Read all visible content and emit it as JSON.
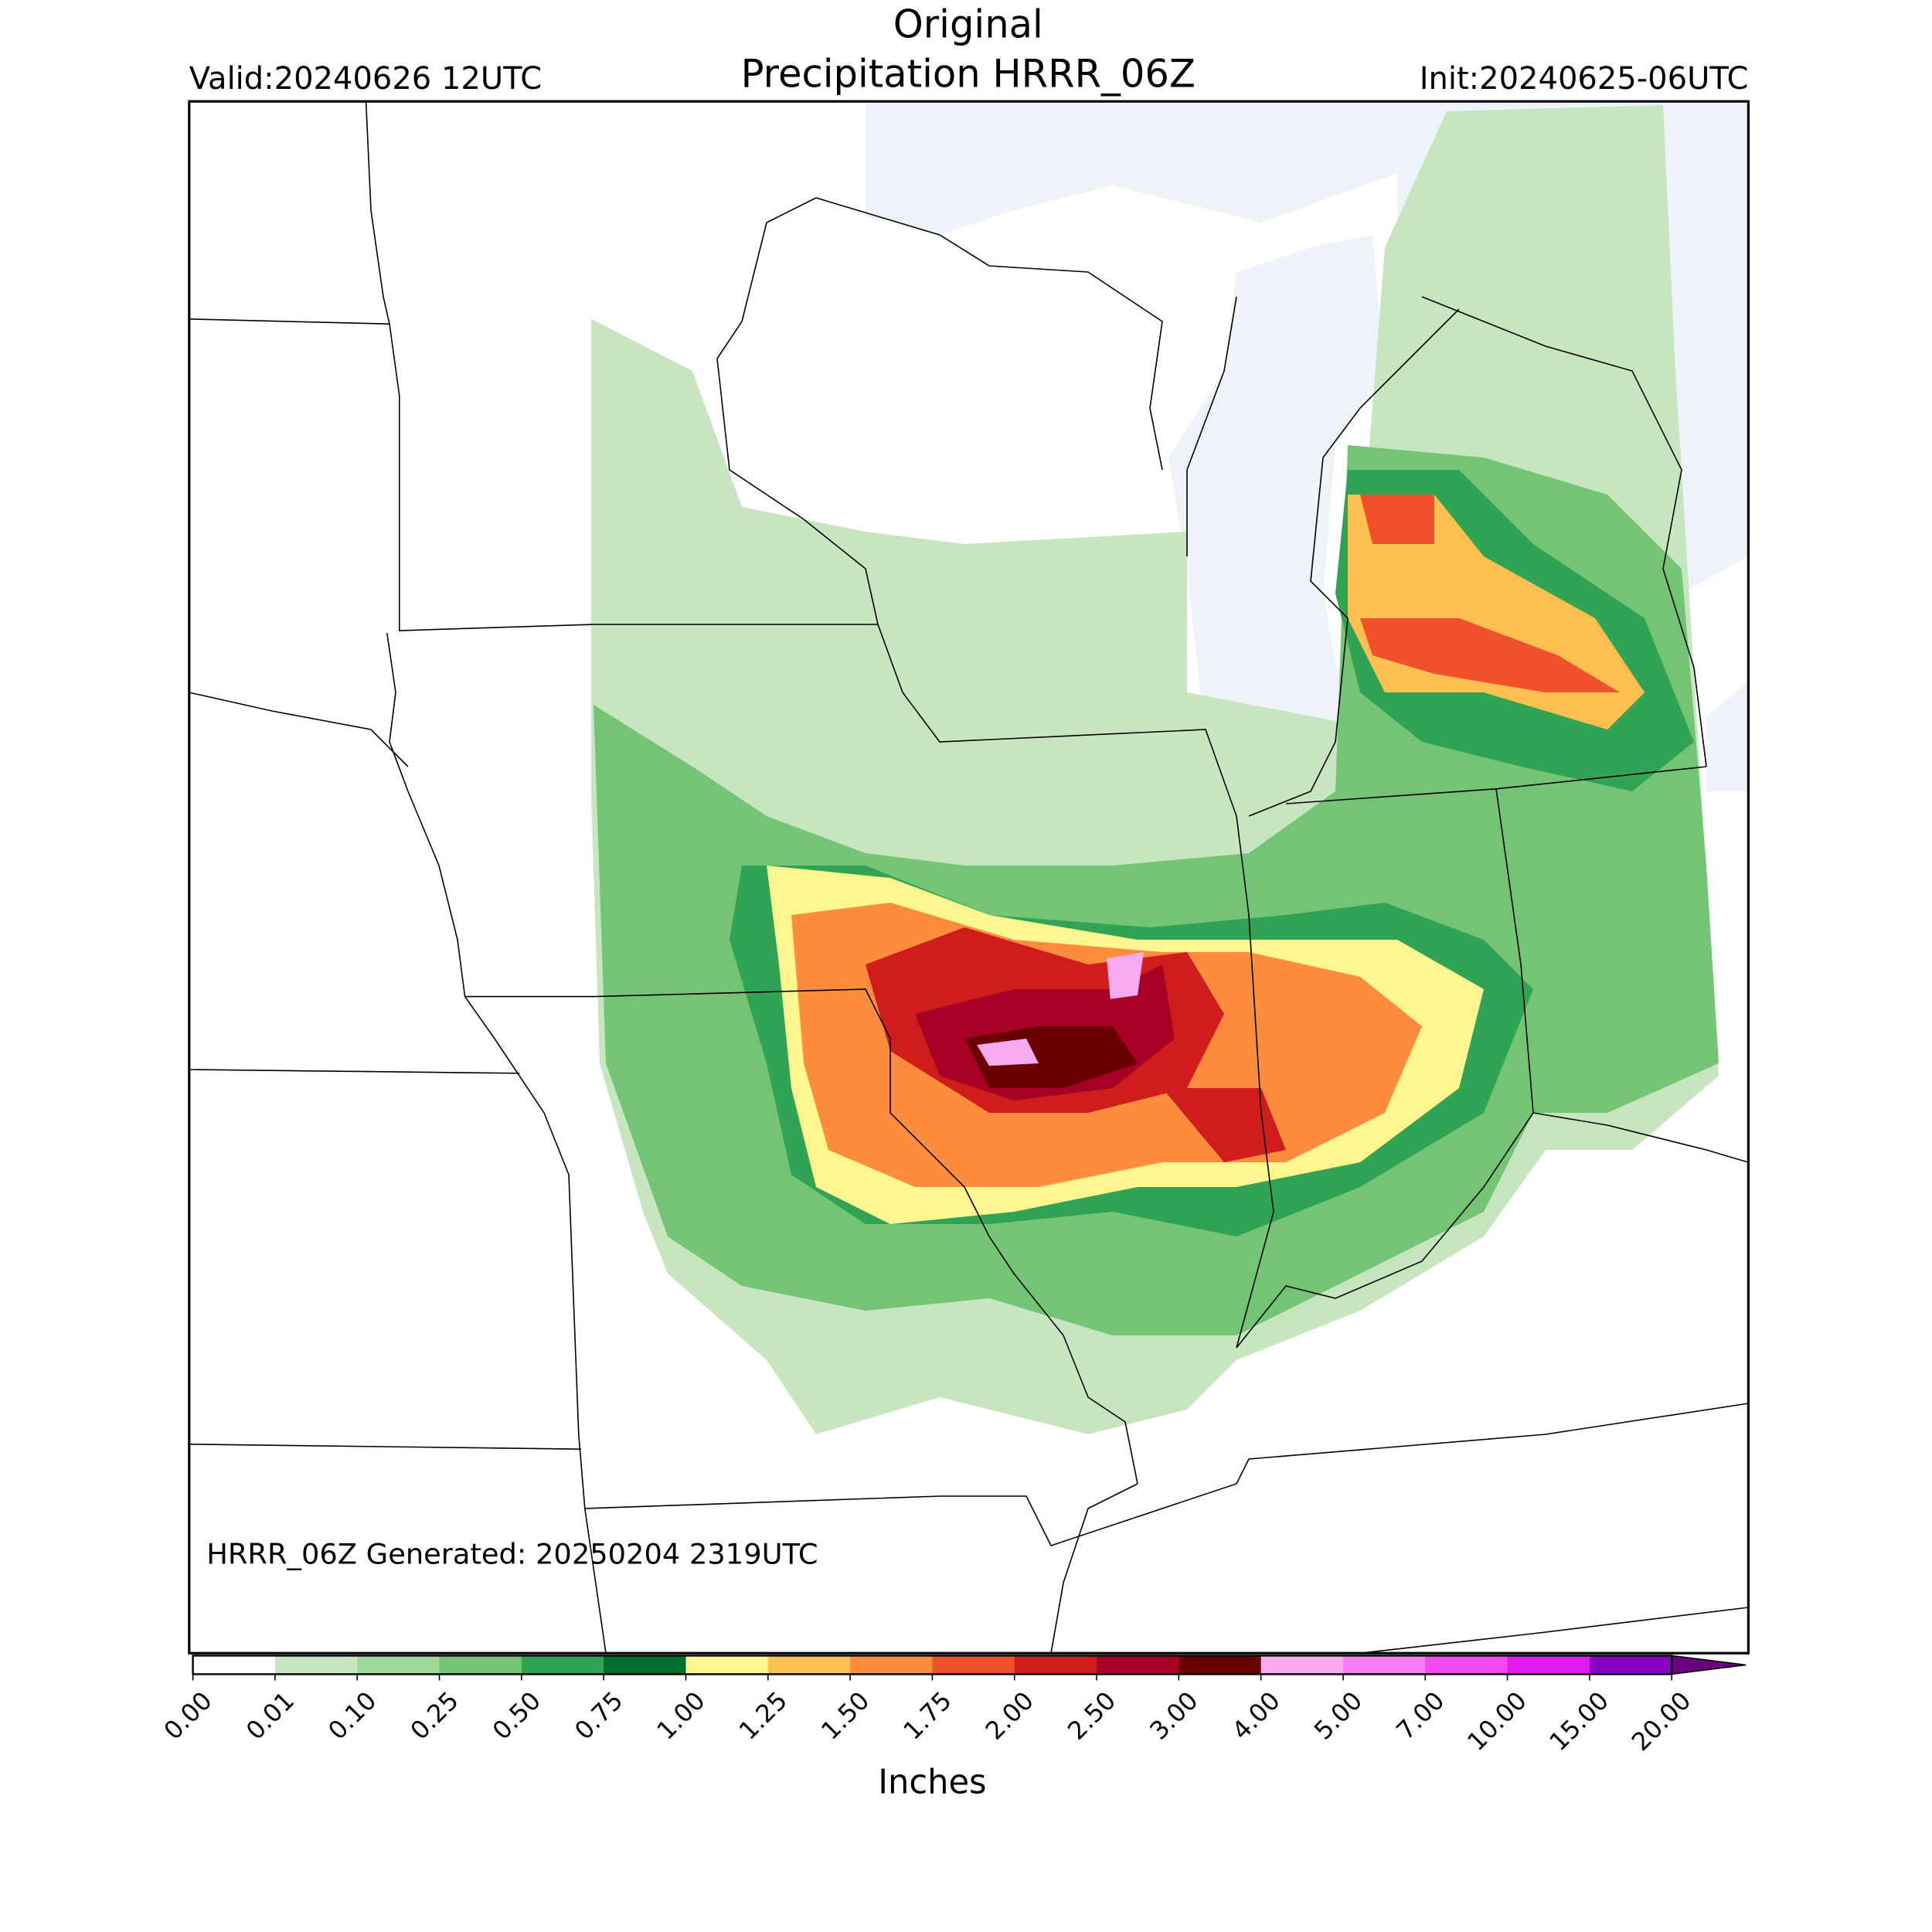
{
  "title": "Original",
  "subtitle": "Precipitation HRRR_06Z",
  "valid": "Valid:20240626 12UTC",
  "init": "Init:20240625-06UTC",
  "footer": "HRRR_06Z Generated: 20250204 2319UTC",
  "colorbar": {
    "label": "Inches",
    "ticks": [
      {
        "value": 0,
        "label": "0.00"
      },
      {
        "value": 0.01,
        "label": "0.01"
      },
      {
        "value": 0.1,
        "label": "0.10"
      },
      {
        "value": 0.25,
        "label": "0.25"
      },
      {
        "value": 0.5,
        "label": "0.50"
      },
      {
        "value": 0.75,
        "label": "0.75"
      },
      {
        "value": 1,
        "label": "1.00"
      },
      {
        "value": 1.25,
        "label": "1.25"
      },
      {
        "value": 1.5,
        "label": "1.50"
      },
      {
        "value": 1.75,
        "label": "1.75"
      },
      {
        "value": 2,
        "label": "2.00"
      },
      {
        "value": 2.5,
        "label": "2.50"
      },
      {
        "value": 3,
        "label": "3.00"
      },
      {
        "value": 4,
        "label": "4.00"
      },
      {
        "value": 5,
        "label": "5.00"
      },
      {
        "value": 7,
        "label": "7.00"
      },
      {
        "value": 10,
        "label": "10.00"
      },
      {
        "value": 15,
        "label": "15.00"
      },
      {
        "value": 20,
        "label": "20.00"
      }
    ],
    "colors": [
      "#ffffff",
      "#c7e6c0",
      "#a1d99b",
      "#74c476",
      "#31a354",
      "#006d2c",
      "#fff68f",
      "#fdbf4f",
      "#fd8d3c",
      "#f0502b",
      "#d01c1c",
      "#a60026",
      "#6b0000",
      "#f7aaf0",
      "#f77ef0",
      "#f54af0",
      "#e319f0",
      "#8b00c9"
    ],
    "over_color": "#6a0080"
  }
}
